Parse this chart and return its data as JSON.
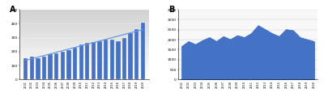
{
  "chart_a": {
    "label": "A",
    "years": [
      2001,
      2002,
      2003,
      2004,
      2005,
      2006,
      2007,
      2008,
      2009,
      2010,
      2011,
      2012,
      2013,
      2014,
      2015,
      2016,
      2017,
      2018,
      2019,
      2020
    ],
    "values": [
      155,
      165,
      155,
      165,
      180,
      190,
      200,
      210,
      230,
      250,
      265,
      270,
      275,
      285,
      285,
      275,
      295,
      330,
      360,
      410
    ],
    "ylim": [
      0,
      500
    ],
    "yticks": [
      0,
      100,
      200,
      300,
      400,
      500
    ],
    "bar_color": "#4472C4",
    "trend_color": "#6699DD",
    "bg_gray": "#d8d8d8",
    "bg_white": "#ffffff"
  },
  "chart_b": {
    "label": "B",
    "years": [
      2001,
      2002,
      2003,
      2004,
      2005,
      2006,
      2007,
      2008,
      2009,
      2010,
      2011,
      2012,
      2013,
      2014,
      2015,
      2016,
      2017,
      2018,
      2019,
      2020
    ],
    "values": [
      1650,
      1900,
      1750,
      1950,
      2100,
      1900,
      2150,
      2000,
      2200,
      2100,
      2300,
      2700,
      2500,
      2300,
      2150,
      2500,
      2450,
      2100,
      2000,
      1900
    ],
    "ylim": [
      0,
      3500
    ],
    "yticks": [
      0,
      500,
      1000,
      1500,
      2000,
      2500,
      3000,
      3500
    ],
    "fill_color": "#4472C4",
    "bg_color": "#f8f8f8"
  }
}
